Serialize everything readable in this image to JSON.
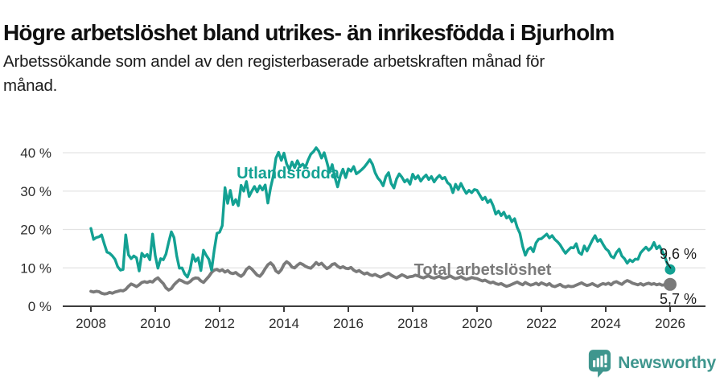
{
  "header": {
    "title": "Högre arbetslöshet bland utrikes- än inrikesfödda i Bjurholm",
    "subtitle_lines": [
      "Arbetssökande som andel av den registerbaserade arbetskraften månad för",
      "månad."
    ]
  },
  "footer": {
    "brand": "Newsworthy"
  },
  "colors": {
    "utlandsfodda": "#13A193",
    "total": "#7A7A7A",
    "grid": "#E3E3E3",
    "axis": "#3C3C3C",
    "logo": "#3F968E",
    "end_label_text": "#1A1A1A"
  },
  "chart_data": {
    "type": "line",
    "title": "Högre arbetslöshet bland utrikes- än inrikesfödda i Bjurholm",
    "subtitle": "Arbetssökande som andel av den registerbaserade arbetskraften månad för månad.",
    "xlabel": "",
    "ylabel": "",
    "x_unit": "month",
    "x_start": "2008-01",
    "x_end": "2026-01",
    "ylim": [
      0,
      43
    ],
    "grid": true,
    "legend_position": "inline-labels",
    "y_ticks": [
      {
        "value": 0,
        "label": "0 %"
      },
      {
        "value": 10,
        "label": "10 %"
      },
      {
        "value": 20,
        "label": "20 %"
      },
      {
        "value": 30,
        "label": "30 %"
      },
      {
        "value": 40,
        "label": "40 %"
      }
    ],
    "x_ticks": [
      {
        "year": 2008,
        "label": "2008"
      },
      {
        "year": 2010,
        "label": "2010"
      },
      {
        "year": 2012,
        "label": "2012"
      },
      {
        "year": 2014,
        "label": "2014"
      },
      {
        "year": 2016,
        "label": "2016"
      },
      {
        "year": 2018,
        "label": "2018"
      },
      {
        "year": 2020,
        "label": "2020"
      },
      {
        "year": 2022,
        "label": "2022"
      },
      {
        "year": 2024,
        "label": "2024"
      },
      {
        "year": 2026,
        "label": "2026"
      }
    ],
    "series": [
      {
        "name": "Total arbetslöshet",
        "color": "#7A7A7A",
        "end_value": 5.7,
        "end_label": "5,7 %",
        "values": [
          3.9,
          3.7,
          3.9,
          3.8,
          3.4,
          3.2,
          3.3,
          3.6,
          3.4,
          3.7,
          3.9,
          4.1,
          4.0,
          4.4,
          5.2,
          5.8,
          5.5,
          5.1,
          5.6,
          6.2,
          6.4,
          6.2,
          6.5,
          6.3,
          7.0,
          7.4,
          6.6,
          5.9,
          4.8,
          4.2,
          4.6,
          5.6,
          6.3,
          6.9,
          6.6,
          6.2,
          6.0,
          6.4,
          7.1,
          7.4,
          7.3,
          6.6,
          6.2,
          7.0,
          7.8,
          8.8,
          9.4,
          9.6,
          9.2,
          9.5,
          8.9,
          9.3,
          8.7,
          8.5,
          8.8,
          8.2,
          7.8,
          8.4,
          9.6,
          10.2,
          9.7,
          8.9,
          8.1,
          7.8,
          8.6,
          9.8,
          10.8,
          11.3,
          10.6,
          9.2,
          8.7,
          9.5,
          10.9,
          11.6,
          11.1,
          10.2,
          10.0,
          10.7,
          11.2,
          10.9,
          10.4,
          10.1,
          9.9,
          10.6,
          11.4,
          10.8,
          11.2,
          10.5,
          9.8,
          10.2,
          10.9,
          11.1,
          10.4,
          10.0,
          10.3,
          9.9,
          9.8,
          10.1,
          9.4,
          9.0,
          9.3,
          8.8,
          8.4,
          8.7,
          8.2,
          8.0,
          8.3,
          7.9,
          7.6,
          7.9,
          8.3,
          8.6,
          8.1,
          7.7,
          7.4,
          7.8,
          8.2,
          7.9,
          7.5,
          7.7,
          7.8,
          8.1,
          7.9,
          7.6,
          7.4,
          7.7,
          7.9,
          7.5,
          7.3,
          7.6,
          7.8,
          7.4,
          7.3,
          7.6,
          7.9,
          7.5,
          7.2,
          7.4,
          7.7,
          7.3,
          7.0,
          7.2,
          7.5,
          7.3,
          7.2,
          6.9,
          6.6,
          6.8,
          6.4,
          6.1,
          6.3,
          5.9,
          5.7,
          5.9,
          5.5,
          5.2,
          5.4,
          5.7,
          6.0,
          6.3,
          5.9,
          5.6,
          6.2,
          5.8,
          5.5,
          5.7,
          6.0,
          5.6,
          6.1,
          5.8,
          5.5,
          5.9,
          5.3,
          5.1,
          5.4,
          5.7,
          5.2,
          5.0,
          5.3,
          5.1,
          5.2,
          5.5,
          5.8,
          6.1,
          5.7,
          5.4,
          5.6,
          5.9,
          5.5,
          5.2,
          5.6,
          5.9,
          5.7,
          6.0,
          5.6,
          6.2,
          6.4,
          6.0,
          5.7,
          6.3,
          6.7,
          6.4,
          6.0,
          5.8,
          5.6,
          5.9,
          5.5,
          5.8,
          6.0,
          5.7,
          5.9,
          5.6,
          5.8,
          5.5,
          5.6,
          5.7,
          5.7
        ]
      },
      {
        "name": "Utlandsfödda",
        "color": "#13A193",
        "end_value": 9.6,
        "end_label": "9,6 %",
        "values": [
          20.3,
          17.4,
          17.9,
          18.1,
          18.6,
          16.2,
          14.1,
          13.8,
          13.1,
          12.2,
          10.3,
          9.4,
          9.6,
          18.6,
          13.4,
          12.4,
          13.1,
          12.6,
          9.2,
          13.8,
          12.9,
          13.5,
          12.1,
          18.8,
          13.2,
          9.9,
          12.4,
          12.1,
          13.6,
          16.7,
          19.4,
          17.9,
          13.1,
          9.9,
          10.0,
          8.4,
          7.6,
          9.5,
          13.4,
          11.7,
          12.6,
          9.3,
          14.6,
          13.3,
          12.2,
          9.4,
          14.6,
          19.0,
          19.3,
          21.0,
          30.9,
          26.8,
          30.2,
          26.5,
          27.8,
          26.2,
          31.5,
          30.0,
          32.5,
          28.6,
          30.0,
          31.2,
          29.8,
          31.4,
          30.3,
          31.6,
          26.9,
          30.8,
          33.9,
          38.6,
          40.1,
          38.0,
          39.9,
          37.1,
          35.6,
          37.6,
          36.1,
          37.9,
          36.4,
          37.0,
          36.2,
          38.1,
          39.6,
          40.3,
          41.3,
          40.4,
          38.6,
          40.0,
          37.6,
          34.9,
          36.9,
          33.6,
          31.1,
          33.9,
          35.7,
          33.5,
          35.8,
          35.2,
          36.4,
          34.5,
          35.0,
          35.6,
          36.3,
          37.2,
          38.2,
          37.0,
          34.8,
          33.4,
          32.6,
          31.4,
          33.8,
          34.8,
          32.0,
          30.8,
          33.2,
          34.5,
          33.6,
          32.4,
          33.0,
          31.8,
          34.4,
          33.2,
          34.0,
          32.6,
          33.5,
          34.2,
          33.0,
          33.8,
          32.4,
          33.4,
          34.1,
          33.2,
          33.6,
          32.2,
          31.6,
          29.6,
          31.8,
          30.4,
          32.0,
          30.6,
          29.4,
          30.2,
          29.6,
          30.4,
          30.2,
          29.0,
          27.8,
          28.4,
          27.0,
          27.7,
          26.2,
          24.0,
          24.8,
          23.6,
          24.5,
          23.0,
          23.5,
          22.0,
          22.8,
          20.5,
          19.0,
          15.6,
          13.3,
          14.8,
          15.3,
          14.2,
          16.5,
          17.5,
          17.6,
          18.2,
          18.8,
          17.8,
          18.4,
          17.4,
          16.8,
          16.0,
          14.8,
          13.8,
          14.6,
          15.3,
          15.2,
          16.3,
          14.0,
          13.5,
          15.7,
          14.4,
          15.8,
          17.2,
          18.4,
          16.9,
          17.4,
          16.1,
          15.0,
          14.4,
          13.0,
          12.6,
          14.0,
          14.9,
          13.1,
          12.4,
          11.2,
          12.1,
          11.6,
          12.3,
          12.2,
          13.9,
          14.7,
          15.4,
          14.6,
          15.2,
          16.6,
          15.0,
          15.7,
          14.4,
          13.0,
          11.0,
          9.6
        ]
      }
    ]
  }
}
